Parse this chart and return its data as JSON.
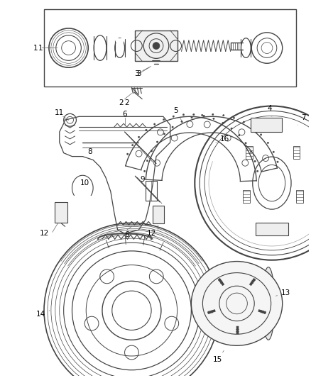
{
  "background_color": "#ffffff",
  "line_color": "#444444",
  "label_color": "#000000",
  "label_fontsize": 7.5,
  "fig_width": 4.38,
  "fig_height": 5.33,
  "dpi": 100
}
